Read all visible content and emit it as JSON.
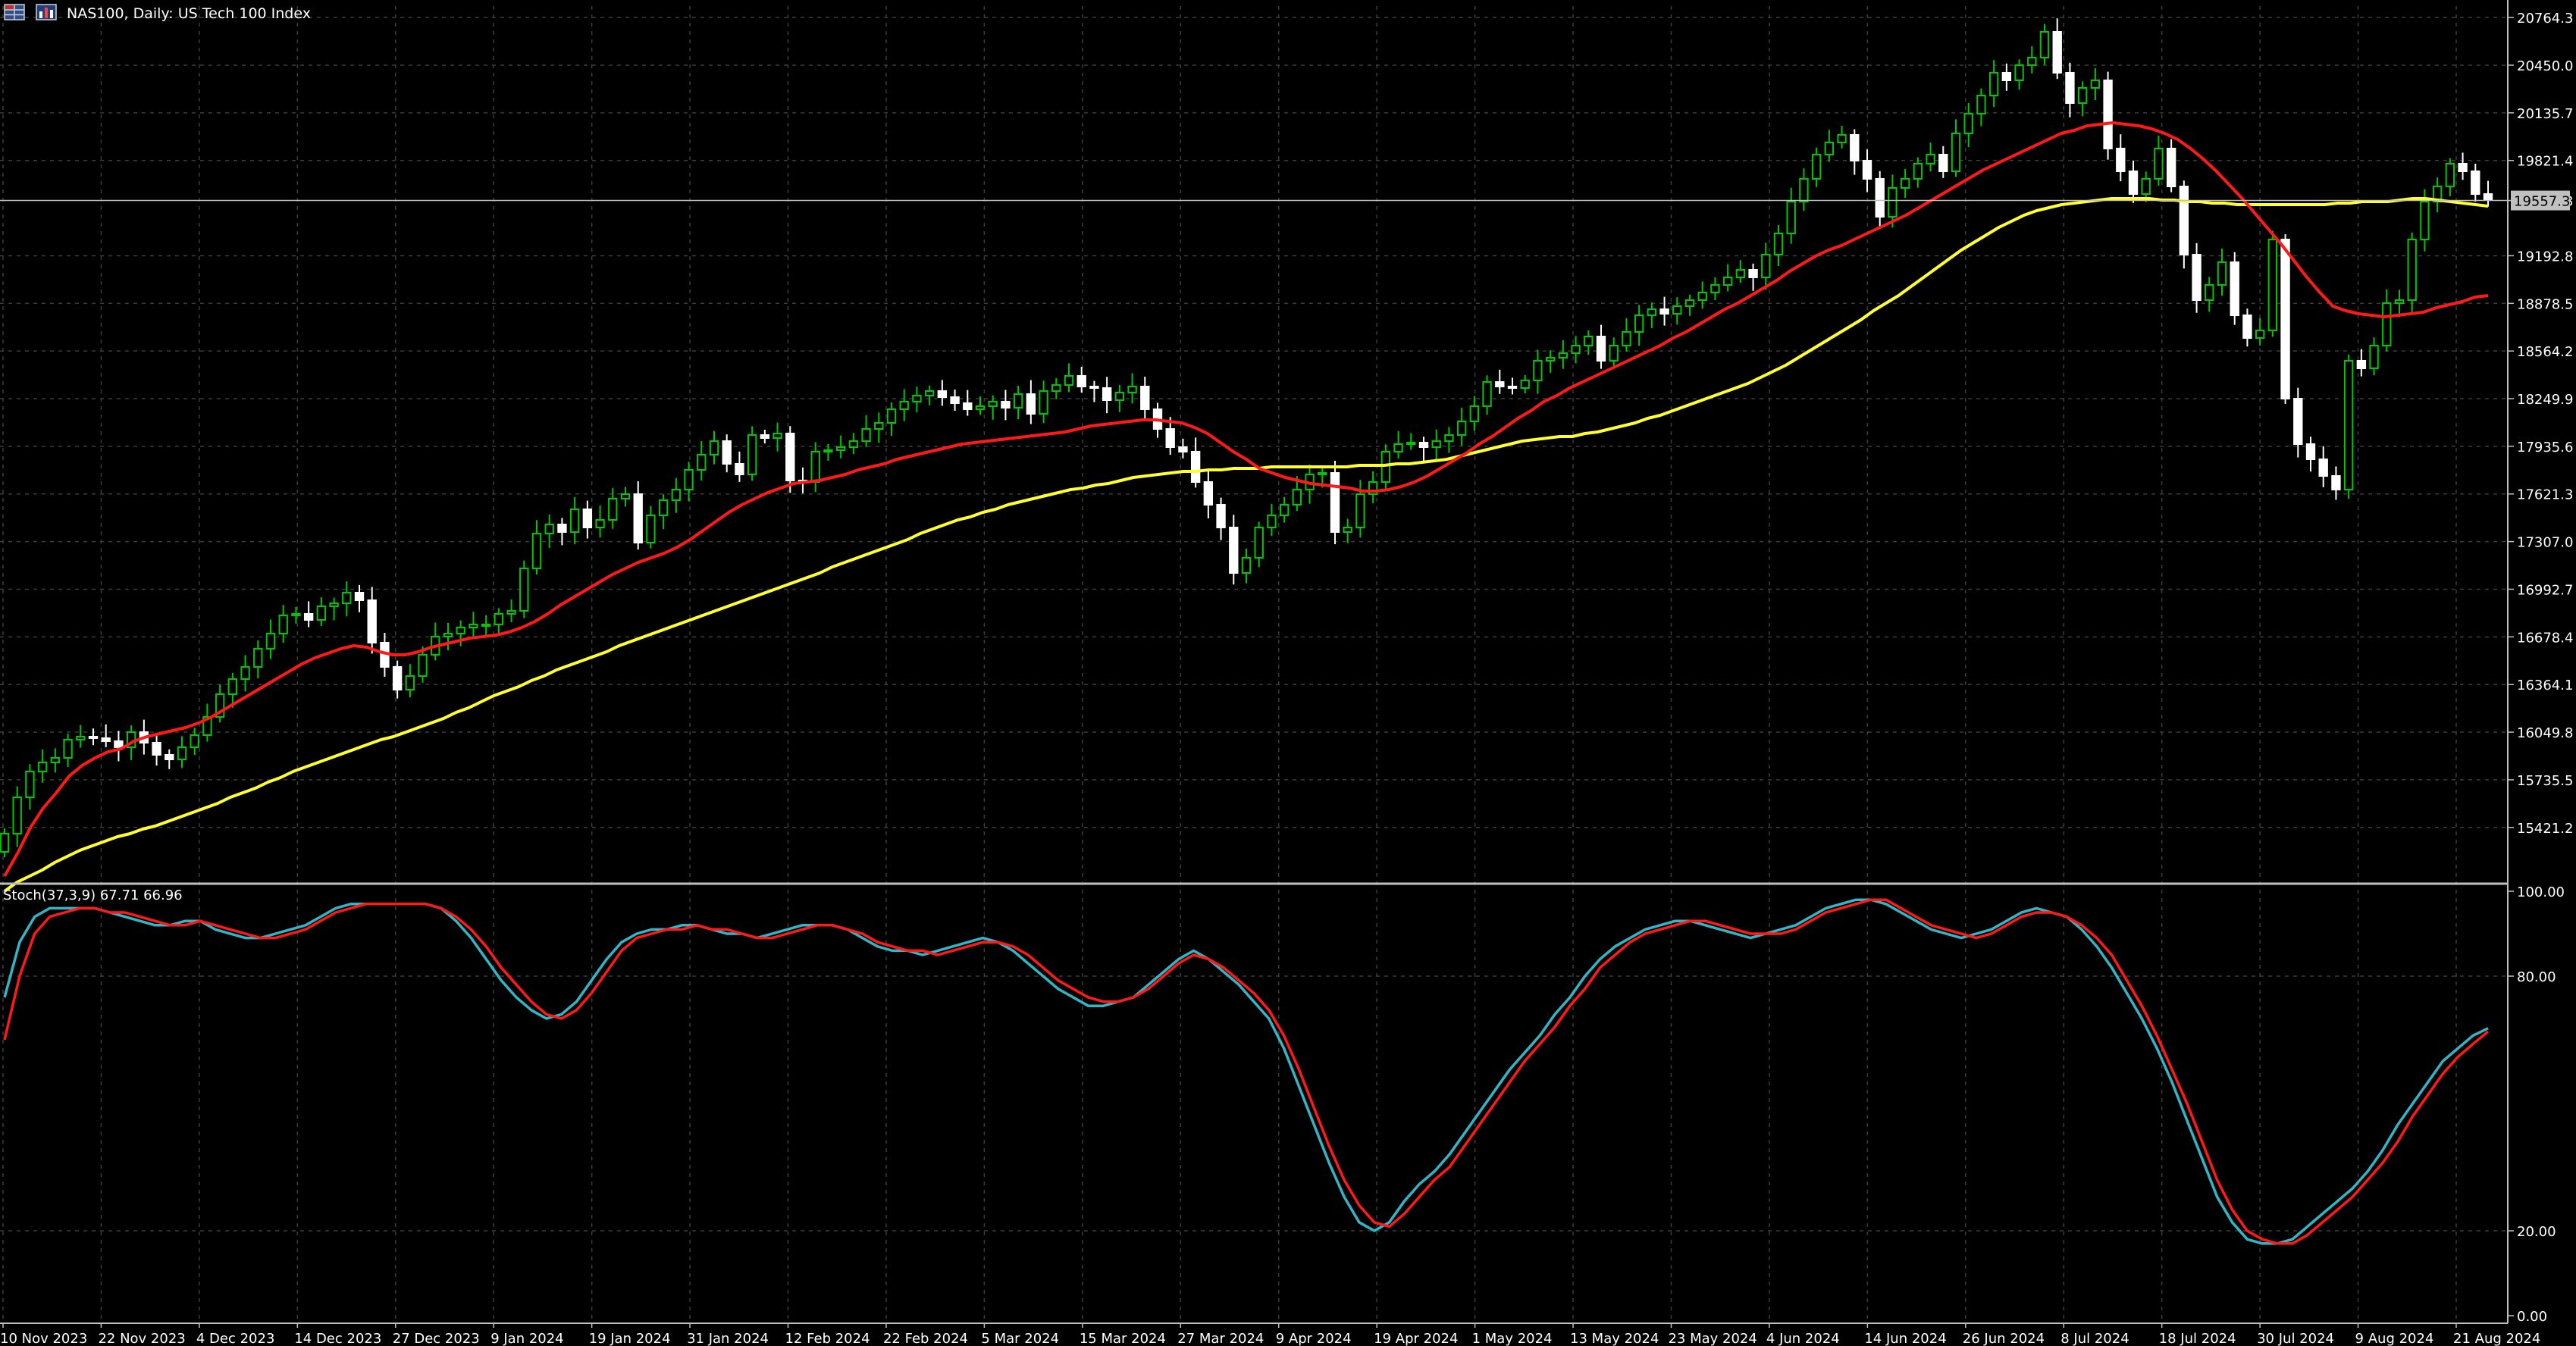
{
  "header": {
    "symbol_title": "NAS100, Daily:  US Tech 100 Index",
    "stoch_title": "Stoch(37,3,9) 67.71 66.96"
  },
  "icons": [
    "chart-grid-icon",
    "bar-chart-icon"
  ],
  "colors": {
    "background": "#000000",
    "grid": "#3c3c3c",
    "bull_candle": "#00c800",
    "bear_candle": "#ffffff",
    "ma_fast": "#ff1a1a",
    "ma_slow": "#ffff33",
    "stoch_main": "#33b5c6",
    "stoch_signal": "#ff1a1a",
    "price_line": "#c0c0c0"
  },
  "chart_data": [
    {
      "type": "candlestick",
      "title": "NAS100, Daily:  US Tech 100 Index",
      "y_ticks": [
        "20764.3",
        "20450.0",
        "20135.7",
        "19821.4",
        "19557.3",
        "19192.8",
        "18878.5",
        "18564.2",
        "18249.9",
        "17935.6",
        "17621.3",
        "17307.0",
        "16992.7",
        "16678.4",
        "16364.1",
        "16049.8",
        "15735.5",
        "15421.2"
      ],
      "ylim": [
        15150,
        20800
      ],
      "current_price": "19557.3",
      "x_ticks": [
        "10 Nov 2023",
        "22 Nov 2023",
        "4 Dec 2023",
        "14 Dec 2023",
        "27 Dec 2023",
        "9 Jan 2024",
        "19 Jan 2024",
        "31 Jan 2024",
        "12 Feb 2024",
        "22 Feb 2024",
        "5 Mar 2024",
        "15 Mar 2024",
        "27 Mar 2024",
        "9 Apr 2024",
        "19 Apr 2024",
        "1 May 2024",
        "13 May 2024",
        "23 May 2024",
        "4 Jun 2024",
        "14 Jun 2024",
        "26 Jun 2024",
        "8 Jul 2024",
        "18 Jul 2024",
        "30 Jul 2024",
        "9 Aug 2024",
        "21 Aug 2024"
      ],
      "series": [
        {
          "values": [
            15380,
            15620,
            15790,
            15850,
            15880,
            16000,
            16020,
            16010,
            15990,
            15950,
            16050,
            15980,
            15900,
            15870,
            15950,
            16030,
            16150,
            16300,
            16400,
            16480,
            16600,
            16700,
            16820,
            16830,
            16790,
            16880,
            16900,
            16970,
            16920,
            16640,
            16480,
            16330,
            16420,
            16560,
            16680,
            16700,
            16740,
            16760,
            16760,
            16830,
            16850,
            17130,
            17360,
            17420,
            17370,
            17520,
            17400,
            17450,
            17590,
            17620,
            17300,
            17480,
            17580,
            17650,
            17780,
            17880,
            17970,
            17820,
            17750,
            18010,
            17990,
            18020,
            17710,
            17700,
            17900,
            17910,
            17930,
            17970,
            18050,
            18090,
            18180,
            18230,
            18270,
            18300,
            18260,
            18220,
            18180,
            18200,
            18230,
            18190,
            18280,
            18150,
            18300,
            18340,
            18400,
            18330,
            18320,
            18240,
            18290,
            18330,
            18180,
            18050,
            17930,
            17900,
            17700,
            17550,
            17400,
            17100,
            17200,
            17400,
            17480,
            17550,
            17650,
            17750,
            17760,
            17370,
            17400,
            17620,
            17700,
            17900,
            17950,
            17960,
            17930,
            17970,
            18010,
            18100,
            18200,
            18360,
            18330,
            18320,
            18370,
            18500,
            18520,
            18550,
            18600,
            18660,
            18500,
            18600,
            18690,
            18800,
            18840,
            18810,
            18860,
            18900,
            18950,
            19000,
            19050,
            19100,
            19050,
            19200,
            19340,
            19550,
            19700,
            19860,
            19940,
            19990,
            19820,
            19700,
            19450,
            19640,
            19700,
            19800,
            19860,
            19750,
            20000,
            20130,
            20250,
            20400,
            20350,
            20450,
            20500,
            20670,
            20400,
            20200,
            20300,
            20350,
            19900,
            19750,
            19600,
            19700,
            19900,
            19650,
            19200,
            18900,
            19000,
            19150,
            18800,
            18650,
            18700,
            19300,
            18250,
            17950,
            17850,
            17740,
            17650,
            18500,
            18450,
            18600,
            18880,
            18900,
            19300,
            19550,
            19650,
            19800,
            19750,
            19600,
            19560
          ]
        },
        {
          "name": "",
          "values": [
            15100,
            15250,
            15420,
            15550,
            15650,
            15760,
            15830,
            15880,
            15920,
            15940,
            15990,
            16020,
            16040,
            16060,
            16080,
            16110,
            16150,
            16200,
            16250,
            16300,
            16350,
            16400,
            16450,
            16500,
            16540,
            16570,
            16600,
            16620,
            16610,
            16580,
            16560,
            16560,
            16580,
            16610,
            16630,
            16650,
            16670,
            16680,
            16690,
            16710,
            16740,
            16780,
            16830,
            16890,
            16940,
            16990,
            17040,
            17090,
            17130,
            17170,
            17200,
            17230,
            17270,
            17320,
            17380,
            17440,
            17500,
            17550,
            17590,
            17630,
            17660,
            17690,
            17700,
            17710,
            17730,
            17750,
            17780,
            17800,
            17820,
            17850,
            17870,
            17890,
            17910,
            17930,
            17950,
            17960,
            17970,
            17980,
            17990,
            18000,
            18010,
            18020,
            18030,
            18050,
            18070,
            18080,
            18090,
            18100,
            18110,
            18110,
            18100,
            18090,
            18060,
            18020,
            17960,
            17900,
            17850,
            17790,
            17760,
            17730,
            17710,
            17690,
            17680,
            17670,
            17660,
            17640,
            17640,
            17650,
            17670,
            17700,
            17740,
            17790,
            17840,
            17890,
            17950,
            18000,
            18060,
            18120,
            18170,
            18230,
            18270,
            18320,
            18360,
            18400,
            18440,
            18480,
            18520,
            18560,
            18600,
            18650,
            18690,
            18740,
            18790,
            18840,
            18880,
            18930,
            18980,
            19030,
            19090,
            19140,
            19190,
            19230,
            19260,
            19300,
            19340,
            19380,
            19420,
            19460,
            19510,
            19560,
            19610,
            19660,
            19710,
            19760,
            19800,
            19840,
            19880,
            19920,
            19960,
            20000,
            20020,
            20050,
            20060,
            20070,
            20060,
            20050,
            20030,
            20000,
            19960,
            19900,
            19830,
            19750,
            19660,
            19570,
            19470,
            19370,
            19270,
            19160,
            19050,
            18950,
            18860,
            18830,
            18810,
            18800,
            18790,
            18800,
            18810,
            18820,
            18850,
            18870,
            18890,
            18920,
            18930
          ]
        },
        {
          "name": "",
          "values": [
            15000,
            15060,
            15100,
            15140,
            15190,
            15230,
            15270,
            15300,
            15330,
            15360,
            15380,
            15410,
            15430,
            15460,
            15490,
            15520,
            15550,
            15580,
            15620,
            15650,
            15680,
            15720,
            15750,
            15790,
            15820,
            15850,
            15880,
            15910,
            15940,
            15970,
            16000,
            16020,
            16050,
            16080,
            16110,
            16140,
            16180,
            16210,
            16250,
            16290,
            16320,
            16350,
            16390,
            16420,
            16460,
            16490,
            16520,
            16550,
            16580,
            16620,
            16650,
            16680,
            16710,
            16740,
            16770,
            16800,
            16830,
            16860,
            16890,
            16920,
            16950,
            16980,
            17010,
            17040,
            17070,
            17100,
            17140,
            17170,
            17200,
            17230,
            17260,
            17290,
            17320,
            17360,
            17390,
            17420,
            17450,
            17470,
            17500,
            17520,
            17550,
            17570,
            17590,
            17610,
            17630,
            17650,
            17660,
            17680,
            17690,
            17710,
            17730,
            17740,
            17750,
            17760,
            17770,
            17770,
            17780,
            17780,
            17790,
            17790,
            17790,
            17800,
            17800,
            17800,
            17800,
            17800,
            17800,
            17800,
            17810,
            17810,
            17810,
            17820,
            17820,
            17830,
            17840,
            17850,
            17870,
            17890,
            17910,
            17930,
            17950,
            17970,
            17980,
            17990,
            18000,
            18000,
            18020,
            18030,
            18050,
            18070,
            18090,
            18120,
            18140,
            18170,
            18200,
            18230,
            18260,
            18290,
            18320,
            18350,
            18390,
            18430,
            18470,
            18520,
            18570,
            18620,
            18670,
            18720,
            18770,
            18830,
            18880,
            18930,
            18990,
            19050,
            19110,
            19170,
            19230,
            19280,
            19330,
            19380,
            19420,
            19460,
            19490,
            19510,
            19530,
            19540,
            19550,
            19560,
            19570,
            19570,
            19570,
            19570,
            19560,
            19560,
            19550,
            19550,
            19540,
            19540,
            19530,
            19530,
            19530,
            19530,
            19530,
            19530,
            19530,
            19530,
            19540,
            19540,
            19550,
            19550,
            19550,
            19560,
            19570,
            19570,
            19560,
            19550,
            19540,
            19530,
            19520
          ]
        }
      ]
    },
    {
      "type": "line",
      "title": "Stoch(37,3,9) 67.71 66.96",
      "y_ticks": [
        "100.00",
        "80.00",
        "20.00",
        "0.00"
      ],
      "ylim": [
        0,
        100
      ],
      "series": [
        {
          "name": "",
          "values": [
            75,
            88,
            94,
            96,
            96,
            96,
            96,
            95,
            94,
            93,
            92,
            92,
            93,
            93,
            91,
            90,
            89,
            89,
            90,
            91,
            92,
            94,
            96,
            97,
            97,
            97,
            97,
            97,
            97,
            96,
            93,
            89,
            84,
            79,
            75,
            72,
            70,
            71,
            74,
            79,
            84,
            88,
            90,
            91,
            91,
            92,
            92,
            91,
            90,
            90,
            89,
            90,
            91,
            92,
            92,
            92,
            91,
            89,
            87,
            86,
            86,
            85,
            86,
            87,
            88,
            89,
            88,
            86,
            83,
            80,
            77,
            75,
            73,
            73,
            74,
            75,
            78,
            81,
            84,
            86,
            84,
            81,
            78,
            74,
            70,
            63,
            54,
            45,
            36,
            28,
            22,
            20,
            22,
            27,
            31,
            34,
            38,
            43,
            48,
            53,
            58,
            62,
            66,
            71,
            75,
            80,
            84,
            87,
            89,
            91,
            92,
            93,
            93,
            92,
            91,
            90,
            89,
            90,
            91,
            92,
            94,
            96,
            97,
            98,
            98,
            97,
            95,
            93,
            91,
            90,
            89,
            90,
            91,
            93,
            95,
            96,
            95,
            94,
            91,
            87,
            82,
            76,
            70,
            63,
            55,
            46,
            37,
            28,
            22,
            18,
            17,
            17,
            18,
            21,
            24,
            27,
            30,
            34,
            39,
            45,
            50,
            55,
            60,
            63,
            66,
            67.71
          ]
        },
        {
          "name": "",
          "values": [
            65,
            80,
            90,
            94,
            95,
            96,
            96,
            95,
            95,
            94,
            93,
            92,
            92,
            93,
            92,
            91,
            90,
            89,
            89,
            90,
            91,
            93,
            95,
            96,
            97,
            97,
            97,
            97,
            97,
            96,
            94,
            91,
            87,
            82,
            78,
            74,
            71,
            70,
            72,
            76,
            81,
            86,
            89,
            90,
            91,
            91,
            92,
            91,
            91,
            90,
            89,
            89,
            90,
            91,
            92,
            92,
            91,
            90,
            88,
            87,
            86,
            86,
            85,
            86,
            87,
            88,
            88,
            87,
            85,
            82,
            79,
            77,
            75,
            74,
            74,
            75,
            77,
            80,
            83,
            85,
            84,
            82,
            79,
            76,
            72,
            66,
            58,
            49,
            40,
            32,
            26,
            22,
            21,
            24,
            28,
            32,
            35,
            40,
            45,
            50,
            55,
            60,
            64,
            68,
            73,
            77,
            82,
            85,
            88,
            90,
            91,
            92,
            93,
            93,
            92,
            91,
            90,
            90,
            90,
            91,
            93,
            95,
            96,
            97,
            98,
            98,
            96,
            94,
            92,
            91,
            90,
            89,
            90,
            92,
            94,
            95,
            95,
            94,
            92,
            89,
            85,
            79,
            73,
            66,
            58,
            50,
            41,
            32,
            25,
            20,
            18,
            17,
            17,
            19,
            22,
            25,
            28,
            32,
            36,
            41,
            47,
            52,
            57,
            61,
            64,
            66.96
          ]
        }
      ]
    }
  ]
}
